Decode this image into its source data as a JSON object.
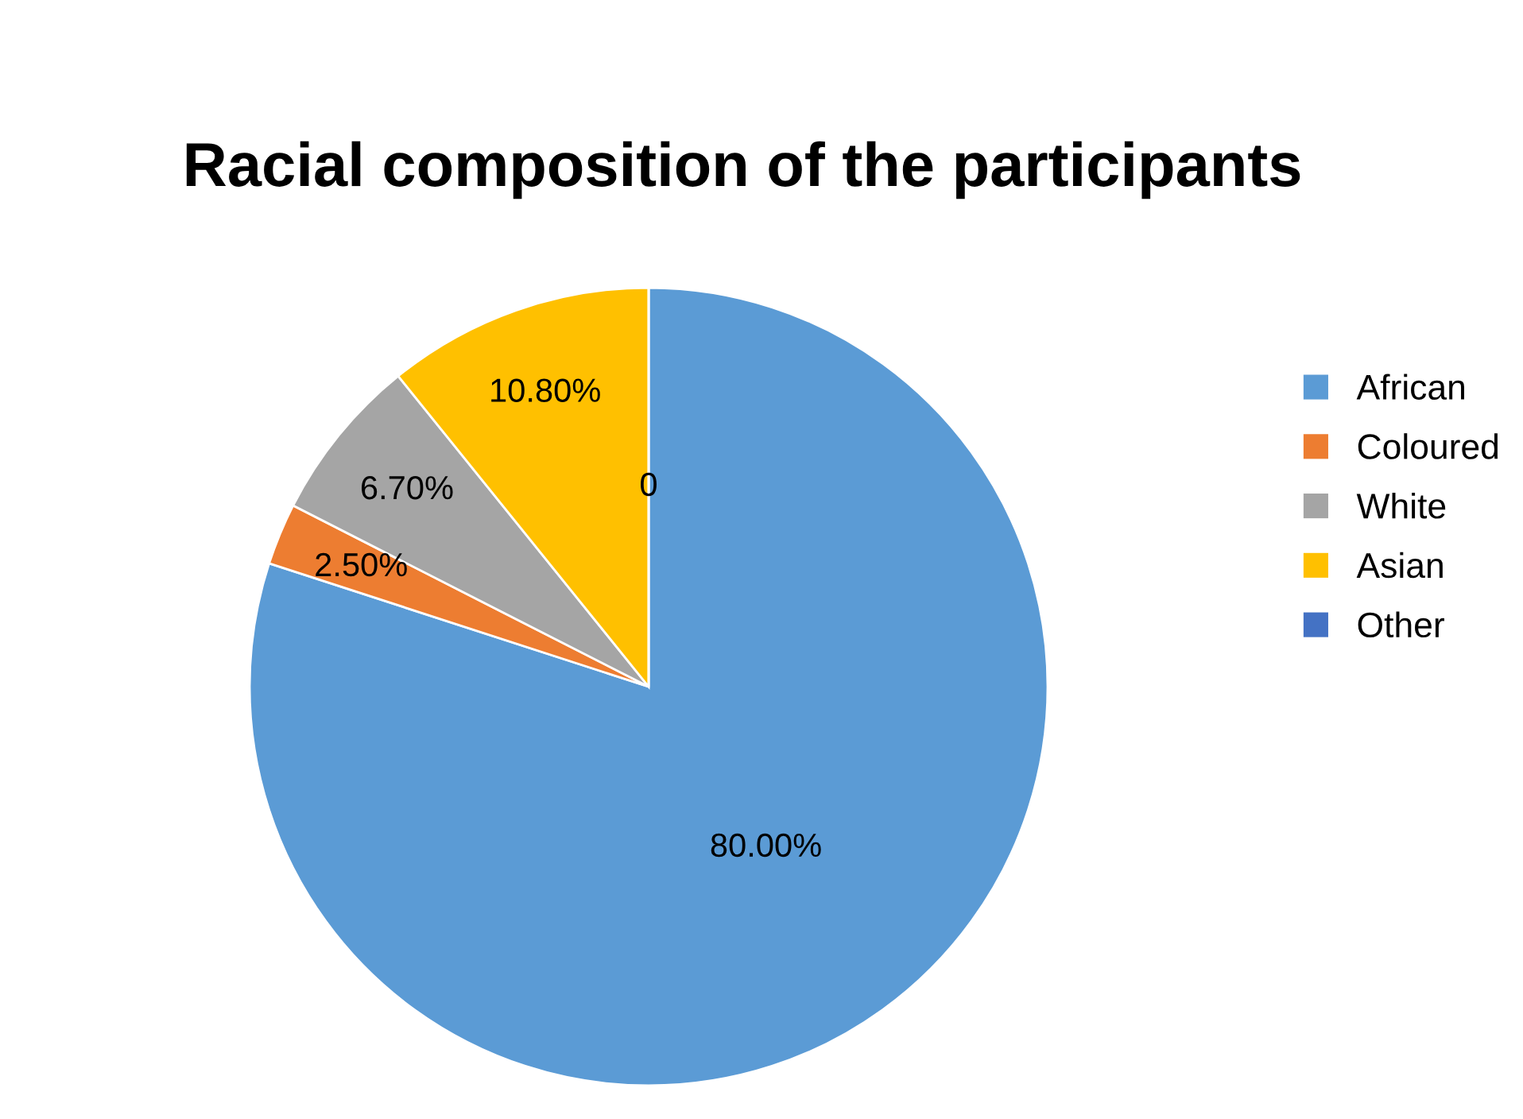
{
  "chart_data": {
    "type": "pie",
    "title": "Racial composition of the participants",
    "categories": [
      "African",
      "Coloured",
      "White",
      "Asian",
      "Other"
    ],
    "values": [
      80.0,
      2.5,
      6.7,
      10.8,
      0
    ],
    "value_labels": [
      "80.00%",
      "2.50%",
      "6.70%",
      "10.80%",
      "0"
    ],
    "colors": [
      "#5b9bd5",
      "#ed7d31",
      "#a5a5a5",
      "#ffc000",
      "#4472c4"
    ],
    "legend": "right"
  }
}
